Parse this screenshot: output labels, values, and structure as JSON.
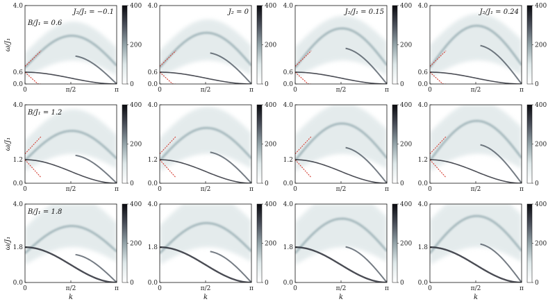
{
  "chart_data": {
    "type": "heatmap",
    "description_colorbar": "grayscale intensity",
    "colorbar": {
      "ticks": [
        "0",
        "200",
        "400"
      ],
      "range": [
        0,
        400
      ]
    },
    "x_ticks": [
      "0",
      "π/2",
      "π"
    ],
    "x_label": "k",
    "y_label": "ω/J₁",
    "rows": [
      {
        "B_label": "B/J₁ = 0.6",
        "y_ticks": [
          "0.0",
          "0.6",
          "4.0"
        ],
        "y_values": [
          0.0,
          0.6,
          4.0
        ]
      },
      {
        "B_label": "B/J₁ = 1.2",
        "y_ticks": [
          "0.0",
          "1.2",
          "4.0"
        ],
        "y_values": [
          0.0,
          1.2,
          4.0
        ]
      },
      {
        "B_label": "B/J₁ = 1.8",
        "y_ticks": [
          "0.0",
          "1.8",
          "4.0"
        ],
        "y_values": [
          0.0,
          1.8,
          4.0
        ]
      }
    ],
    "columns": [
      {
        "J_label": "J₂/J₁ = −0.1",
        "J2": -0.1
      },
      {
        "J_label": "J₂ = 0",
        "J2": 0.0
      },
      {
        "J_label": "J₂/J₁ = 0.15",
        "J2": 0.15
      },
      {
        "J_label": "J₂/J₁ = 0.24",
        "J2": 0.24
      }
    ],
    "ylim": [
      0,
      4.0
    ],
    "xlim": [
      0,
      3.1416
    ]
  }
}
